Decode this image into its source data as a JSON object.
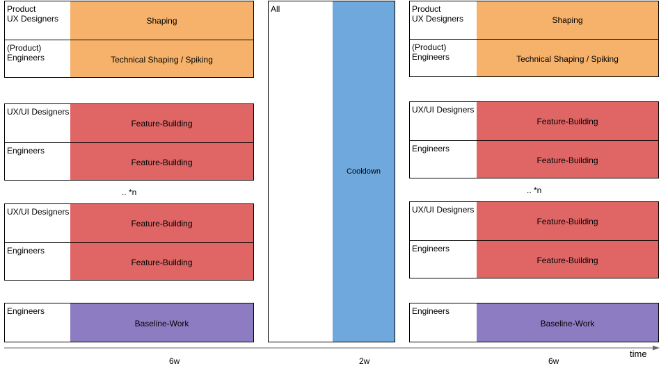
{
  "left_cycle": {
    "shaping": [
      {
        "role": "Product\nUX Designers",
        "task": "Shaping"
      },
      {
        "role": "(Product)\nEngineers",
        "task": "Technical Shaping / Spiking"
      }
    ],
    "building_a": [
      {
        "role": "UX/UI Designers",
        "task": "Feature-Building"
      },
      {
        "role": "Engineers",
        "task": "Feature-Building"
      }
    ],
    "repeat_note": ".. *n",
    "building_b": [
      {
        "role": "UX/UI Designers",
        "task": "Feature-Building"
      },
      {
        "role": "Engineers",
        "task": "Feature-Building"
      }
    ],
    "baseline": {
      "role": "Engineers",
      "task": "Baseline-Work"
    },
    "duration": "6w"
  },
  "cooldown": {
    "role": "All",
    "task": "Cooldown",
    "duration": "2w"
  },
  "right_cycle": {
    "shaping": [
      {
        "role": "Product\nUX Designers",
        "task": "Shaping"
      },
      {
        "role": "(Product)\nEngineers",
        "task": "Technical Shaping / Spiking"
      }
    ],
    "building_a": [
      {
        "role": "UX/UI Designers",
        "task": "Feature-Building"
      },
      {
        "role": "Engineers",
        "task": "Feature-Building"
      }
    ],
    "repeat_note": ".. *n",
    "building_b": [
      {
        "role": "UX/UI Designers",
        "task": "Feature-Building"
      },
      {
        "role": "Engineers",
        "task": "Feature-Building"
      }
    ],
    "baseline": {
      "role": "Engineers",
      "task": "Baseline-Work"
    },
    "duration": "6w"
  },
  "axis_label": "time",
  "colors": {
    "shaping": "#f6b26b",
    "feature": "#e06666",
    "baseline": "#8e7cc3",
    "cooldown": "#6fa8dc"
  }
}
